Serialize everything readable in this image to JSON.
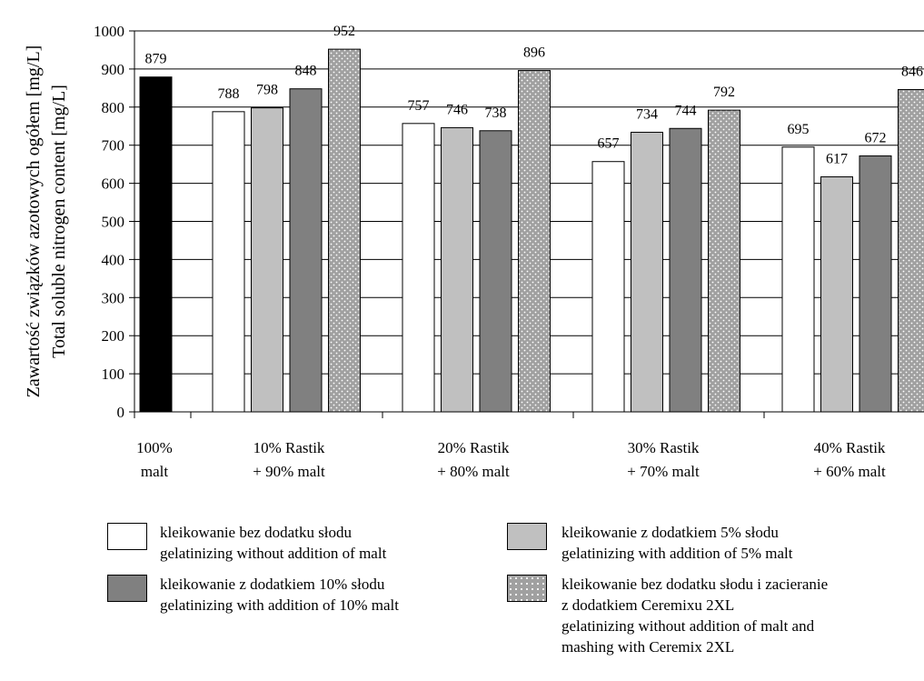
{
  "chart_data": {
    "type": "bar",
    "ylabel_lines": [
      "Zawartość związków azotowych ogółem [mg/L]",
      "Total soluble nitrogen content [mg/L]"
    ],
    "ylim": [
      0,
      1000
    ],
    "yticks": [
      0,
      100,
      200,
      300,
      400,
      500,
      600,
      700,
      800,
      900,
      1000
    ],
    "grid": "horizontal major gridlines",
    "categories": [
      {
        "lines": [
          "100%",
          "malt"
        ]
      },
      {
        "lines": [
          "10% Rastik",
          "+ 90% malt"
        ]
      },
      {
        "lines": [
          "20% Rastik",
          "+ 80% malt"
        ]
      },
      {
        "lines": [
          "30% Rastik",
          "+ 70% malt"
        ]
      },
      {
        "lines": [
          "40% Rastik",
          "+ 60% malt"
        ]
      }
    ],
    "control": {
      "category": 0,
      "value": 879,
      "label": "879",
      "color": "#000000"
    },
    "series": [
      {
        "key": "white",
        "color": "#ffffff",
        "pattern": "none",
        "legend_lines": [
          "kleikowanie bez dodatku słodu",
          "gelatinizing without addition of malt"
        ],
        "values": [
          null,
          788,
          757,
          657,
          695
        ],
        "labels": [
          "",
          "788",
          "757",
          "657",
          "695"
        ]
      },
      {
        "key": "light",
        "color": "#c0c0c0",
        "pattern": "none",
        "legend_lines": [
          "kleikowanie z dodatkiem 5% słodu",
          "gelatinizing with addition of 5% malt"
        ],
        "values": [
          null,
          798,
          746,
          734,
          617
        ],
        "labels": [
          "",
          "798",
          "746",
          "734",
          "617"
        ]
      },
      {
        "key": "dark",
        "color": "#808080",
        "pattern": "none",
        "legend_lines": [
          "kleikowanie z dodatkiem 10% słodu",
          "gelatinizing with addition of 10% malt"
        ],
        "values": [
          null,
          848,
          738,
          744,
          672
        ],
        "labels": [
          "",
          "848",
          "738",
          "744",
          "672"
        ]
      },
      {
        "key": "dotted",
        "color": "#a0a0a0",
        "pattern": "dots",
        "legend_lines": [
          "kleikowanie bez dodatku słodu i zacieranie",
          "z dodatkiem Ceremixu 2XL",
          "gelatinizing without addition of malt and",
          "mashing with Ceremix 2XL"
        ],
        "values": [
          null,
          952,
          896,
          792,
          846
        ],
        "labels": [
          "",
          "952",
          "896",
          "792",
          "846"
        ]
      }
    ]
  }
}
